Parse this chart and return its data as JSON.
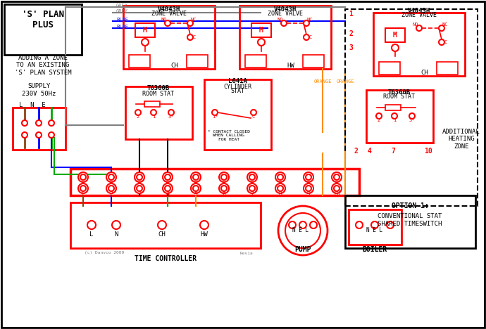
{
  "title": "'S' PLAN PLUS",
  "subtitle": "ADDING A ZONE\nTO AN EXISTING\n'S' PLAN SYSTEM",
  "bg_color": "#ffffff",
  "line_colors": {
    "grey": "#808080",
    "blue": "#0000ff",
    "green": "#00aa00",
    "orange": "#ff8c00",
    "brown": "#8B4513",
    "black": "#000000",
    "red": "#ff0000"
  },
  "option_text": "OPTION 1:\n\nCONVENTIONAL STAT\nSHARED TIMESWITCH"
}
